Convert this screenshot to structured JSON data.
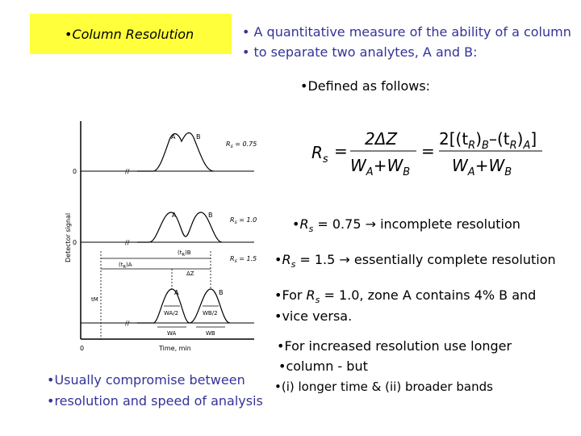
{
  "title": "•Column Resolution",
  "definition": [
    "• A quantitative measure of the ability of a column",
    "• to separate two analytes, A and B:"
  ],
  "defined_as": "•Defined as follows:",
  "equation": {
    "lhs": "R",
    "lhs_sub": "s",
    "eq1": "=",
    "frac1_num": "2ΔZ",
    "frac1_den": "W",
    "eq2": "=",
    "frac2_num": "2[(t",
    "frac2_den": "W",
    "sub_A": "A",
    "sub_B": "B",
    "sub_R": "R",
    "plus": "+",
    "minus": "–",
    "paren_close": ")",
    "bracket_close": "]"
  },
  "bullets": {
    "rs075": {
      "prefix": "•",
      "R": "R",
      "sub": "s",
      "text": " = 0.75 → incomplete resolution"
    },
    "rs15": {
      "prefix": "•",
      "R": "R",
      "sub": "s",
      "text": " = 1.5 → essentially complete resolution"
    },
    "rs10_1": {
      "prefix": "•For ",
      "R": "R",
      "sub": "s",
      "text": " = 1.0, zone A contains 4% B and"
    },
    "rs10_2": "•vice versa.",
    "longer_1": "•For increased resolution use longer",
    "longer_2": "•column - but",
    "longer_3": "•(i) longer time & (ii) broader bands"
  },
  "compromise": [
    "•Usually compromise between",
    "•resolution and speed of analysis"
  ],
  "figure": {
    "ylabel": "Detector signal",
    "xlabel": "Time, min",
    "zero": "0",
    "break": "//",
    "peak_A": "A",
    "peak_B": "B",
    "panel1_label": "R",
    "panel1_label_sub": "s",
    "panel1_value": " = 0.75",
    "panel2_label": "R",
    "panel2_label_sub": "s",
    "panel2_value": " = 1.0",
    "panel3_label": "R",
    "panel3_label_sub": "s",
    "panel3_value": " = 1.5",
    "tr_b": "(t",
    "tr_b_sub": "R",
    "tr_b_end": ")B",
    "tr_a": "(t",
    "tr_a_sub": "R",
    "tr_a_end": ")A",
    "dz": "ΔZ",
    "tm": "tM",
    "wa2": "WA/2",
    "wb2": "WB/2",
    "wa": "WA",
    "wb": "WB"
  }
}
